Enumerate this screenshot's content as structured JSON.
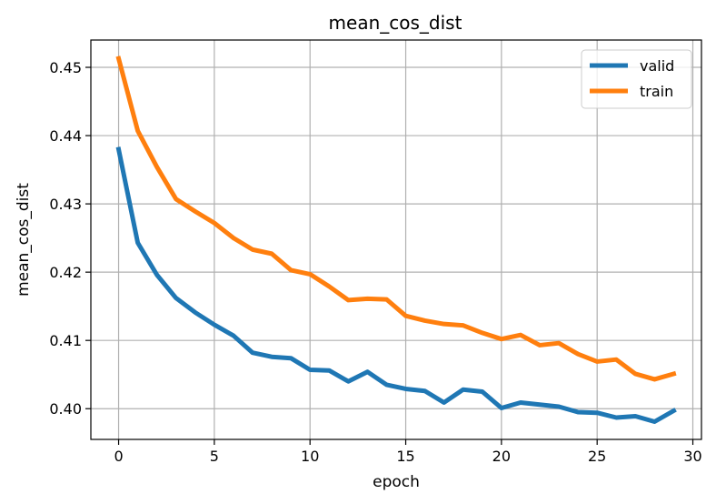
{
  "chart_data": {
    "type": "line",
    "title": "mean_cos_dist",
    "xlabel": "epoch",
    "ylabel": "mean_cos_dist",
    "xlim": [
      -1.45,
      30.45
    ],
    "ylim": [
      0.3955,
      0.454
    ],
    "xticks": [
      0,
      5,
      10,
      15,
      20,
      25,
      30
    ],
    "xtick_labels": [
      "0",
      "5",
      "10",
      "15",
      "20",
      "25",
      "30"
    ],
    "yticks": [
      0.4,
      0.41,
      0.42,
      0.43,
      0.44,
      0.45
    ],
    "ytick_labels": [
      "0.40",
      "0.41",
      "0.42",
      "0.43",
      "0.44",
      "0.45"
    ],
    "grid": true,
    "legend": "top-right",
    "x": [
      0,
      1,
      2,
      3,
      4,
      5,
      6,
      7,
      8,
      9,
      10,
      11,
      12,
      13,
      14,
      15,
      16,
      17,
      18,
      19,
      20,
      21,
      22,
      23,
      24,
      25,
      26,
      27,
      28,
      29
    ],
    "series": [
      {
        "name": "valid",
        "color": "#1f77b4",
        "values": [
          0.438,
          0.4243,
          0.4196,
          0.4162,
          0.4141,
          0.4123,
          0.4107,
          0.4082,
          0.4076,
          0.4074,
          0.4057,
          0.4056,
          0.404,
          0.4054,
          0.4035,
          0.4029,
          0.4026,
          0.4009,
          0.4028,
          0.4025,
          0.4001,
          0.4009,
          0.4006,
          0.4003,
          0.3995,
          0.3994,
          0.3987,
          0.3989,
          0.3981,
          0.3997
        ]
      },
      {
        "name": "train",
        "color": "#ff7f0e",
        "values": [
          0.4513,
          0.4407,
          0.4354,
          0.4307,
          0.4289,
          0.4272,
          0.425,
          0.4233,
          0.4227,
          0.4203,
          0.4197,
          0.4179,
          0.4159,
          0.4161,
          0.416,
          0.4136,
          0.4129,
          0.4124,
          0.4122,
          0.4111,
          0.4102,
          0.4108,
          0.4093,
          0.4096,
          0.408,
          0.4069,
          0.4072,
          0.4051,
          0.4043,
          0.4051
        ]
      }
    ]
  }
}
